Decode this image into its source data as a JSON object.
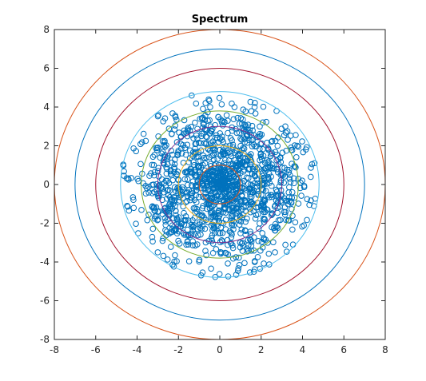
{
  "chart_data": {
    "type": "scatter",
    "title": "Spectrum",
    "xlabel": "",
    "ylabel": "",
    "xlim": [
      -8,
      8
    ],
    "ylim": [
      -8,
      8
    ],
    "xticks": [
      -8,
      -6,
      -4,
      -2,
      0,
      2,
      4,
      6,
      8
    ],
    "yticks": [
      -8,
      -6,
      -4,
      -2,
      0,
      2,
      4,
      6,
      8
    ],
    "grid": false,
    "legend": "none",
    "circles": [
      {
        "radius": 1.0,
        "color": "#D95319"
      },
      {
        "radius": 2.0,
        "color": "#EDB120"
      },
      {
        "radius": 3.0,
        "color": "#7E2F8E"
      },
      {
        "radius": 3.8,
        "color": "#77AC30"
      },
      {
        "radius": 4.8,
        "color": "#4DBEEE"
      },
      {
        "radius": 6.0,
        "color": "#A2142F"
      },
      {
        "radius": 7.0,
        "color": "#0072BD"
      },
      {
        "radius": 8.0,
        "color": "#D95319"
      }
    ],
    "scatter_series": {
      "marker": "circle",
      "color": "#0072BD",
      "count": 1400,
      "distribution_radius": 4.8
    }
  }
}
